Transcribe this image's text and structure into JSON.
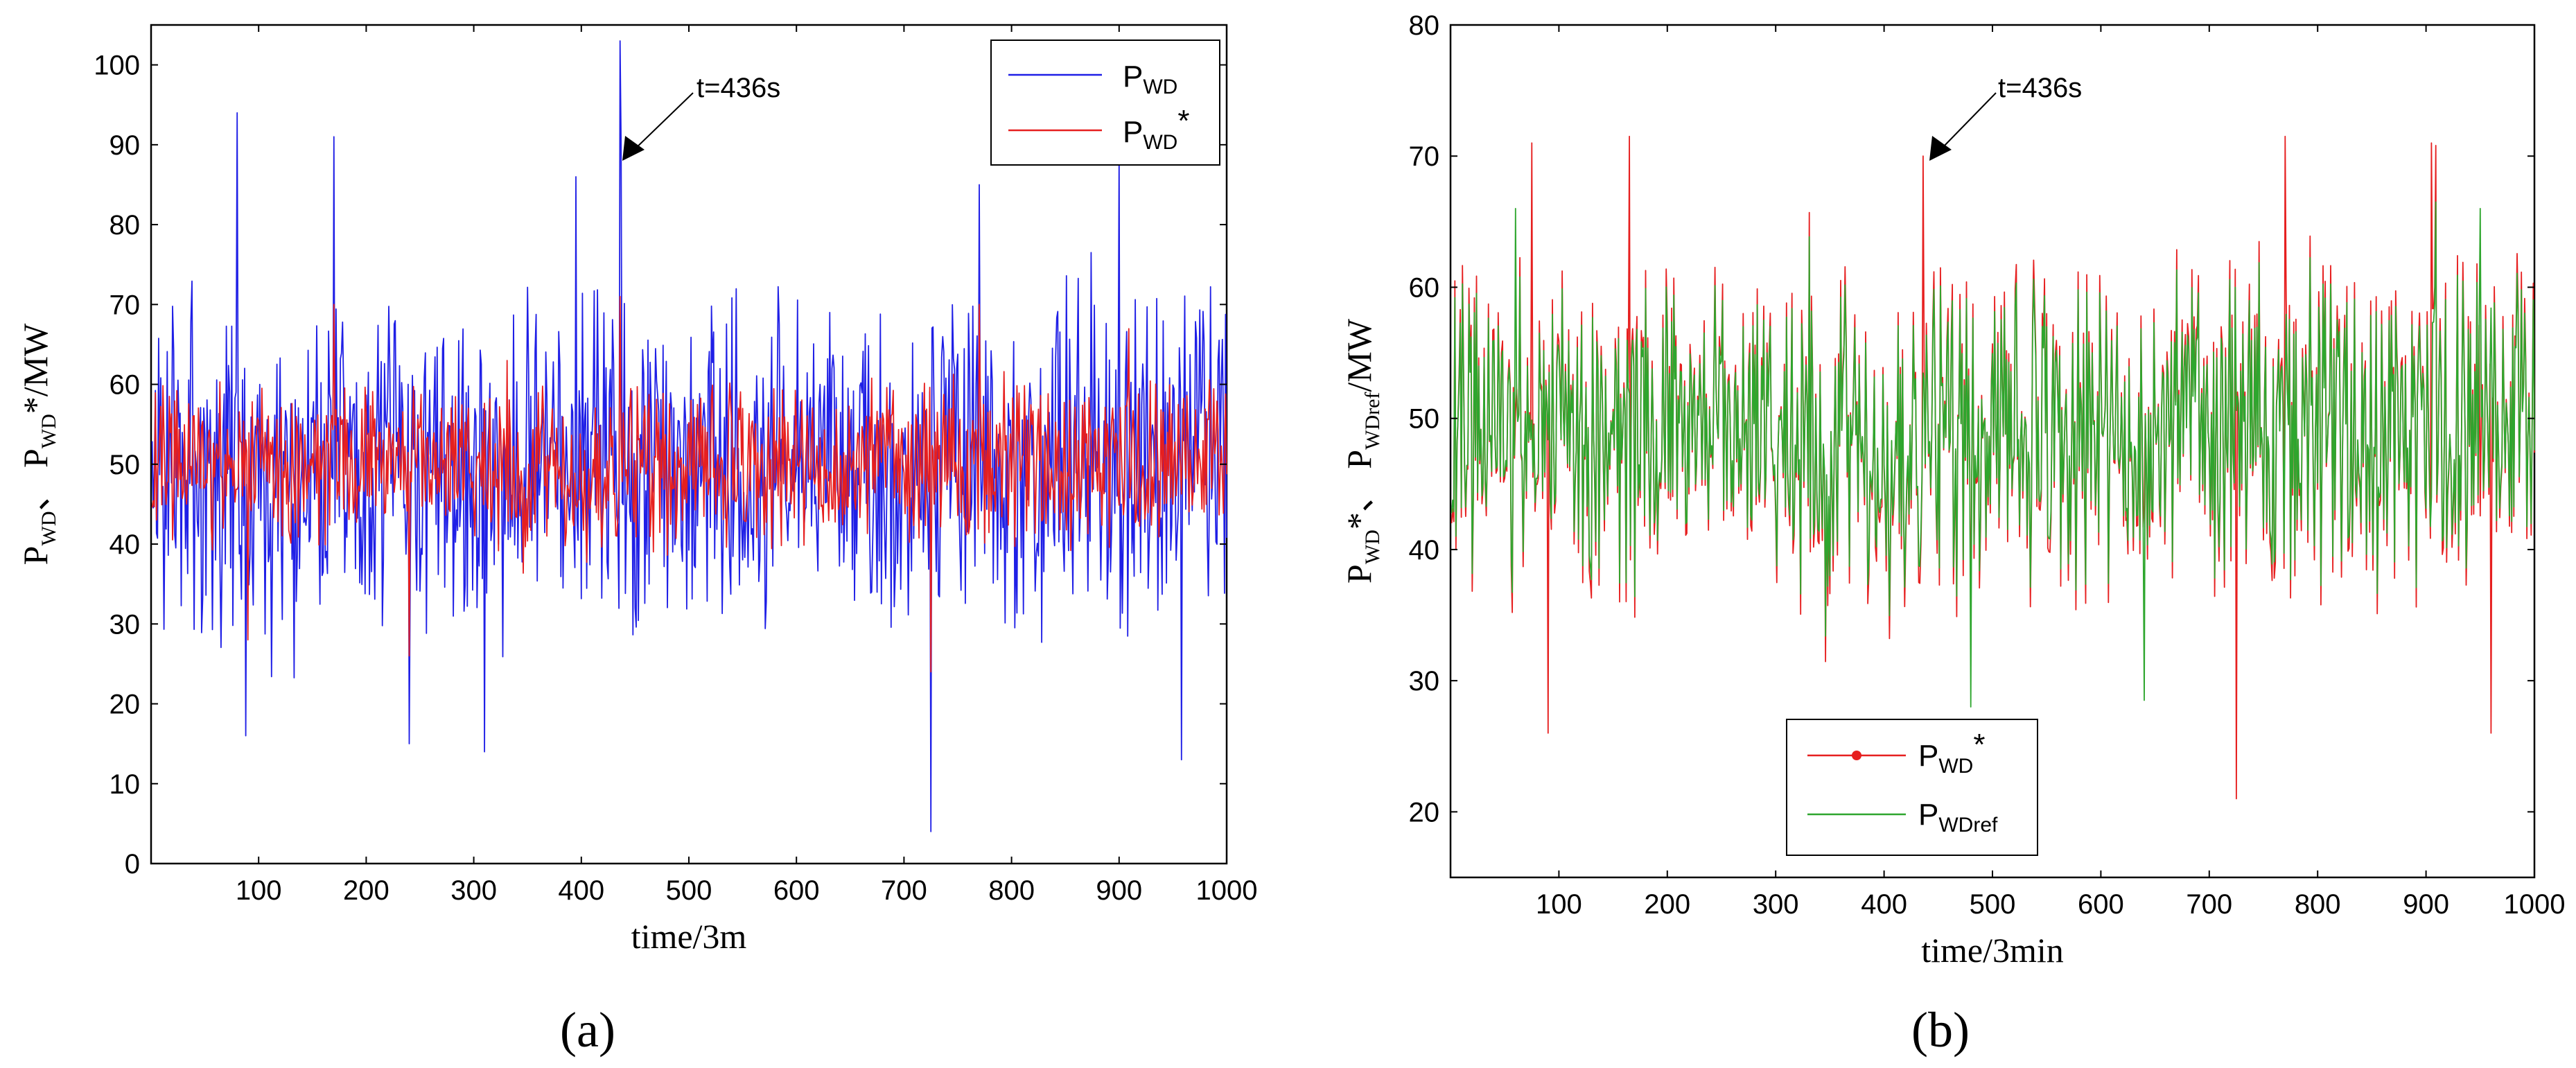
{
  "chart_data": [
    {
      "type": "line",
      "panel_label": "(a)",
      "xlabel": "time/3m",
      "ylabel": {
        "parts": [
          "P",
          "WD",
          "、 P",
          "WD",
          "*/MW"
        ]
      },
      "xlim": [
        0,
        1000
      ],
      "ylim": [
        0,
        105
      ],
      "xticks": [
        100,
        200,
        300,
        400,
        500,
        600,
        700,
        800,
        900,
        1000
      ],
      "yticks": [
        0,
        10,
        20,
        30,
        40,
        50,
        60,
        70,
        80,
        90,
        100
      ],
      "grid": false,
      "legend": {
        "placement": "top-right",
        "entries": [
          {
            "main": "P",
            "sub": "WD",
            "sup": "",
            "color": "#1f1fe6",
            "marker": false
          },
          {
            "main": "P",
            "sub": "WD",
            "sup": "*",
            "color": "#e61f1f",
            "marker": false
          }
        ]
      },
      "annotation": {
        "text": "t=436s",
        "x": 436,
        "y": 90
      },
      "series": [
        {
          "name": "P_WD",
          "color": "#1f1fe6",
          "x_start": 1,
          "x_end": 1000,
          "mean": 50,
          "amplitude": 15,
          "min": 4,
          "max": 103,
          "seed": 11,
          "key_points": [
            {
              "x": 436,
              "y": 103
            },
            {
              "x": 437,
              "y": 90
            },
            {
              "x": 80,
              "y": 94
            },
            {
              "x": 88,
              "y": 16
            },
            {
              "x": 725,
              "y": 4
            },
            {
              "x": 770,
              "y": 85
            },
            {
              "x": 900,
              "y": 89
            },
            {
              "x": 958,
              "y": 13
            },
            {
              "x": 240,
              "y": 15
            },
            {
              "x": 310,
              "y": 14
            },
            {
              "x": 170,
              "y": 91
            },
            {
              "x": 395,
              "y": 86
            }
          ]
        },
        {
          "name": "P_WD*",
          "color": "#e61f1f",
          "x_start": 1,
          "x_end": 1000,
          "mean": 50,
          "amplitude": 7,
          "min": 25,
          "max": 72,
          "seed": 23,
          "key_points": [
            {
              "x": 436,
              "y": 71
            },
            {
              "x": 170,
              "y": 70
            },
            {
              "x": 240,
              "y": 26
            },
            {
              "x": 725,
              "y": 24
            },
            {
              "x": 90,
              "y": 28
            },
            {
              "x": 770,
              "y": 70
            }
          ]
        }
      ]
    },
    {
      "type": "line",
      "panel_label": "(b)",
      "xlabel": "time/3min",
      "ylabel": {
        "parts": [
          "P",
          "WD",
          "*、 P",
          "WDref",
          "/MW"
        ]
      },
      "xlim": [
        0,
        1000
      ],
      "ylim": [
        15,
        80
      ],
      "xticks": [
        100,
        200,
        300,
        400,
        500,
        600,
        700,
        800,
        900,
        1000
      ],
      "yticks": [
        20,
        30,
        40,
        50,
        60,
        70,
        80
      ],
      "grid": false,
      "legend": {
        "placement": "bottom-center",
        "entries": [
          {
            "main": "P",
            "sub": "WD",
            "sup": "*",
            "color": "#e61f1f",
            "marker": true
          },
          {
            "main": "P",
            "sub": "WDref",
            "sup": "",
            "color": "#2ea62e",
            "marker": false
          }
        ]
      },
      "annotation": {
        "text": "t=436s",
        "x": 436,
        "y": 70
      },
      "series": [
        {
          "name": "P_WD*",
          "color": "#e61f1f",
          "x_start": 1,
          "x_end": 1000,
          "mean": 49,
          "amplitude": 9,
          "min": 21,
          "max": 71.5,
          "seed": 23,
          "key_points": [
            {
              "x": 725,
              "y": 21
            },
            {
              "x": 90,
              "y": 26
            },
            {
              "x": 960,
              "y": 26
            },
            {
              "x": 165,
              "y": 71.5
            },
            {
              "x": 436,
              "y": 70
            },
            {
              "x": 770,
              "y": 71.5
            },
            {
              "x": 905,
              "y": 71
            },
            {
              "x": 75,
              "y": 71
            }
          ]
        },
        {
          "name": "P_WDref",
          "color": "#2ea62e",
          "x_start": 1,
          "x_end": 1000,
          "mean": 49,
          "amplitude": 8,
          "min": 28,
          "max": 66.5,
          "seed": 23,
          "key_points": [
            {
              "x": 480,
              "y": 28
            },
            {
              "x": 640,
              "y": 28.5
            },
            {
              "x": 60,
              "y": 66
            },
            {
              "x": 950,
              "y": 66
            }
          ]
        }
      ]
    }
  ]
}
